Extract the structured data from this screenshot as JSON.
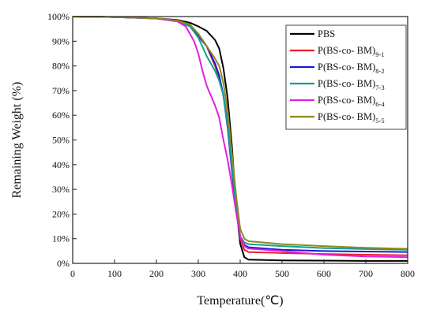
{
  "chart_data": {
    "type": "line",
    "title": "",
    "xlabel": "Temperature(℃)",
    "ylabel": "Remaining Weight (%)",
    "xlim": [
      0,
      800
    ],
    "ylim": [
      0,
      100
    ],
    "x_ticks": [
      0,
      100,
      200,
      300,
      400,
      500,
      600,
      700,
      800
    ],
    "y_ticks": [
      0,
      10,
      20,
      30,
      40,
      50,
      60,
      70,
      80,
      90,
      100
    ],
    "y_tick_suffix": "%",
    "grid": false,
    "legend_position": "top-right",
    "series": [
      {
        "name": "PBS",
        "legend": {
          "main": "PBS",
          "sub": ""
        },
        "color": "#000000",
        "points": [
          [
            0,
            100
          ],
          [
            100,
            99.8
          ],
          [
            200,
            99.3
          ],
          [
            250,
            98.6
          ],
          [
            280,
            97.5
          ],
          [
            300,
            96
          ],
          [
            320,
            94.2
          ],
          [
            340,
            90.5
          ],
          [
            350,
            87
          ],
          [
            360,
            79
          ],
          [
            370,
            67
          ],
          [
            380,
            48
          ],
          [
            390,
            24
          ],
          [
            400,
            8
          ],
          [
            410,
            2.5
          ],
          [
            420,
            1.5
          ],
          [
            500,
            1.2
          ],
          [
            600,
            1.1
          ],
          [
            700,
            1.0
          ],
          [
            800,
            1.0
          ]
        ]
      },
      {
        "name": "P(BS-co- BM)9-1",
        "legend": {
          "main": "P(BS-co- BM)",
          "sub": "9-1"
        },
        "color": "#e8202a",
        "points": [
          [
            0,
            100
          ],
          [
            100,
            99.8
          ],
          [
            200,
            99.3
          ],
          [
            250,
            98.3
          ],
          [
            280,
            96.5
          ],
          [
            300,
            93
          ],
          [
            320,
            88
          ],
          [
            340,
            80
          ],
          [
            350,
            75
          ],
          [
            360,
            68
          ],
          [
            370,
            58
          ],
          [
            380,
            44
          ],
          [
            390,
            26
          ],
          [
            400,
            10
          ],
          [
            410,
            5.5
          ],
          [
            420,
            4.6
          ],
          [
            500,
            4.2
          ],
          [
            600,
            3.8
          ],
          [
            700,
            3.5
          ],
          [
            800,
            3.3
          ]
        ]
      },
      {
        "name": "P(BS-co- BM)8-2",
        "legend": {
          "main": "P(BS-co- BM)",
          "sub": "8-2"
        },
        "color": "#1a1ad8",
        "points": [
          [
            0,
            100
          ],
          [
            100,
            99.8
          ],
          [
            200,
            99.2
          ],
          [
            250,
            98.2
          ],
          [
            280,
            96.2
          ],
          [
            300,
            92
          ],
          [
            320,
            88
          ],
          [
            340,
            81
          ],
          [
            350,
            76
          ],
          [
            360,
            68
          ],
          [
            370,
            55
          ],
          [
            380,
            38
          ],
          [
            390,
            22
          ],
          [
            400,
            11
          ],
          [
            410,
            7.5
          ],
          [
            420,
            6.5
          ],
          [
            500,
            5.5
          ],
          [
            600,
            5
          ],
          [
            700,
            4.8
          ],
          [
            800,
            4.6
          ]
        ]
      },
      {
        "name": "P(BS-co- BM)7-3",
        "legend": {
          "main": "P(BS-co- BM)",
          "sub": "7-3"
        },
        "color": "#12a091",
        "points": [
          [
            0,
            100
          ],
          [
            100,
            99.8
          ],
          [
            200,
            99.2
          ],
          [
            250,
            98.2
          ],
          [
            280,
            96
          ],
          [
            300,
            91.5
          ],
          [
            320,
            84
          ],
          [
            340,
            78
          ],
          [
            350,
            74
          ],
          [
            360,
            68
          ],
          [
            370,
            56
          ],
          [
            380,
            40
          ],
          [
            390,
            24
          ],
          [
            400,
            11
          ],
          [
            410,
            8.5
          ],
          [
            420,
            7.8
          ],
          [
            500,
            7
          ],
          [
            600,
            6.2
          ],
          [
            700,
            5.8
          ],
          [
            800,
            5.5
          ]
        ]
      },
      {
        "name": "P(BS-co- BM)6-4",
        "legend": {
          "main": "P(BS-co- BM)",
          "sub": "6-4"
        },
        "color": "#e020e0",
        "points": [
          [
            0,
            100
          ],
          [
            100,
            99.8
          ],
          [
            200,
            99.2
          ],
          [
            250,
            98
          ],
          [
            270,
            96
          ],
          [
            290,
            90
          ],
          [
            300,
            85
          ],
          [
            310,
            78
          ],
          [
            320,
            72
          ],
          [
            340,
            64
          ],
          [
            350,
            59
          ],
          [
            360,
            50
          ],
          [
            370,
            42
          ],
          [
            380,
            32
          ],
          [
            390,
            21
          ],
          [
            400,
            11
          ],
          [
            410,
            7
          ],
          [
            420,
            6
          ],
          [
            500,
            5
          ],
          [
            600,
            3.5
          ],
          [
            700,
            2.8
          ],
          [
            800,
            2.5
          ]
        ]
      },
      {
        "name": "P(BS-co- BM)5-5",
        "legend": {
          "main": "P(BS-co- BM)",
          "sub": "5-5"
        },
        "color": "#8c8a1e",
        "points": [
          [
            0,
            100
          ],
          [
            100,
            99.8
          ],
          [
            200,
            99.3
          ],
          [
            250,
            98.4
          ],
          [
            280,
            96.8
          ],
          [
            300,
            93
          ],
          [
            320,
            88
          ],
          [
            340,
            83
          ],
          [
            350,
            80
          ],
          [
            360,
            73
          ],
          [
            370,
            62
          ],
          [
            380,
            45
          ],
          [
            390,
            28
          ],
          [
            400,
            14
          ],
          [
            410,
            10
          ],
          [
            420,
            9
          ],
          [
            500,
            7.8
          ],
          [
            600,
            7
          ],
          [
            700,
            6.3
          ],
          [
            800,
            5.9
          ]
        ]
      }
    ]
  }
}
